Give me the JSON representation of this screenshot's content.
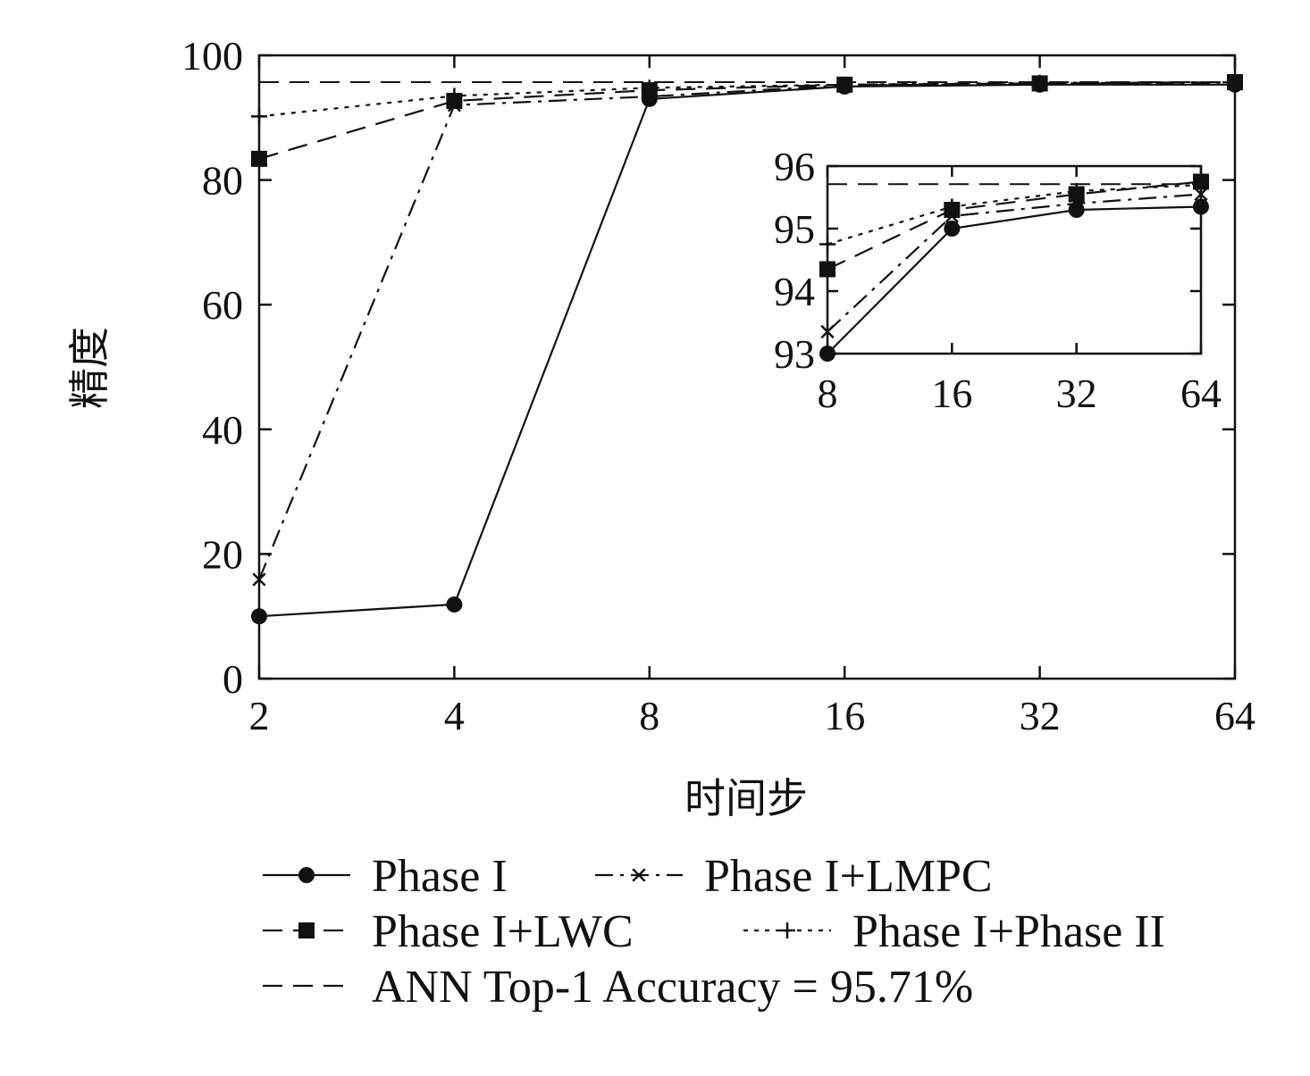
{
  "chart_data": [
    {
      "type": "line",
      "role": "main",
      "xlabel": "时间步",
      "ylabel": "精度",
      "x_categories": [
        "2",
        "4",
        "8",
        "16",
        "32",
        "64"
      ],
      "x_scale": "log2",
      "ylim": [
        0,
        100
      ],
      "yticks": [
        0,
        20,
        40,
        60,
        80,
        100
      ],
      "grid": false,
      "legend_position": "bottom",
      "series": [
        {
          "name": "Phase I",
          "marker": "circle",
          "dash": "solid",
          "x": [
            2,
            4,
            8,
            16,
            32,
            64
          ],
          "y": [
            10.0,
            11.9,
            93.0,
            95.0,
            95.3,
            95.3
          ]
        },
        {
          "name": "Phase I+LMPC",
          "marker": "x",
          "dash": "dashdot",
          "x": [
            2,
            4,
            8,
            16,
            32,
            64
          ],
          "y": [
            15.9,
            92.0,
            93.4,
            95.2,
            95.4,
            95.6
          ]
        },
        {
          "name": "Phase I+LWC",
          "marker": "square",
          "dash": "dashed",
          "x": [
            2,
            4,
            8,
            16,
            32,
            64
          ],
          "y": [
            83.4,
            92.7,
            94.4,
            95.3,
            95.5,
            95.7
          ]
        },
        {
          "name": "Phase I+Phase II",
          "marker": "plus",
          "dash": "dotted",
          "x": [
            2,
            4,
            8,
            16,
            32,
            64
          ],
          "y": [
            90.2,
            93.5,
            94.8,
            95.3,
            95.6,
            95.7
          ]
        }
      ],
      "reference_line": {
        "name": "ANN Top-1 Accuracy = 95.71%",
        "y": 95.71,
        "dash": "dashed"
      }
    },
    {
      "type": "line",
      "role": "inset",
      "x_categories": [
        "8",
        "16",
        "32",
        "64"
      ],
      "x_scale": "log2",
      "ylim": [
        93,
        96
      ],
      "yticks": [
        93,
        94,
        95,
        96
      ],
      "series": [
        {
          "name": "Phase I",
          "x": [
            8,
            16,
            32,
            64
          ],
          "y": [
            93.0,
            95.0,
            95.3,
            95.35
          ]
        },
        {
          "name": "Phase I+LMPC",
          "x": [
            8,
            16,
            32,
            64
          ],
          "y": [
            93.35,
            95.2,
            95.4,
            95.55
          ]
        },
        {
          "name": "Phase I+LWC",
          "x": [
            8,
            16,
            32,
            64
          ],
          "y": [
            94.35,
            95.3,
            95.55,
            95.75
          ]
        },
        {
          "name": "Phase I+Phase II",
          "x": [
            8,
            16,
            32,
            64
          ],
          "y": [
            94.75,
            95.35,
            95.6,
            95.7
          ]
        }
      ],
      "reference_line": {
        "y": 95.71
      }
    }
  ],
  "legend": {
    "entries": [
      {
        "label": "Phase I",
        "marker": "circle",
        "dash": "solid"
      },
      {
        "label": "Phase I+LMPC",
        "marker": "x",
        "dash": "dashdot"
      },
      {
        "label": "Phase I+LWC",
        "marker": "square",
        "dash": "dashed"
      },
      {
        "label": "Phase I+Phase II",
        "marker": "plus",
        "dash": "dotted"
      },
      {
        "label": "ANN Top-1 Accuracy = 95.71%",
        "marker": "none",
        "dash": "dashed"
      }
    ]
  },
  "colors": {
    "ink": "#111111",
    "background": "#ffffff"
  }
}
